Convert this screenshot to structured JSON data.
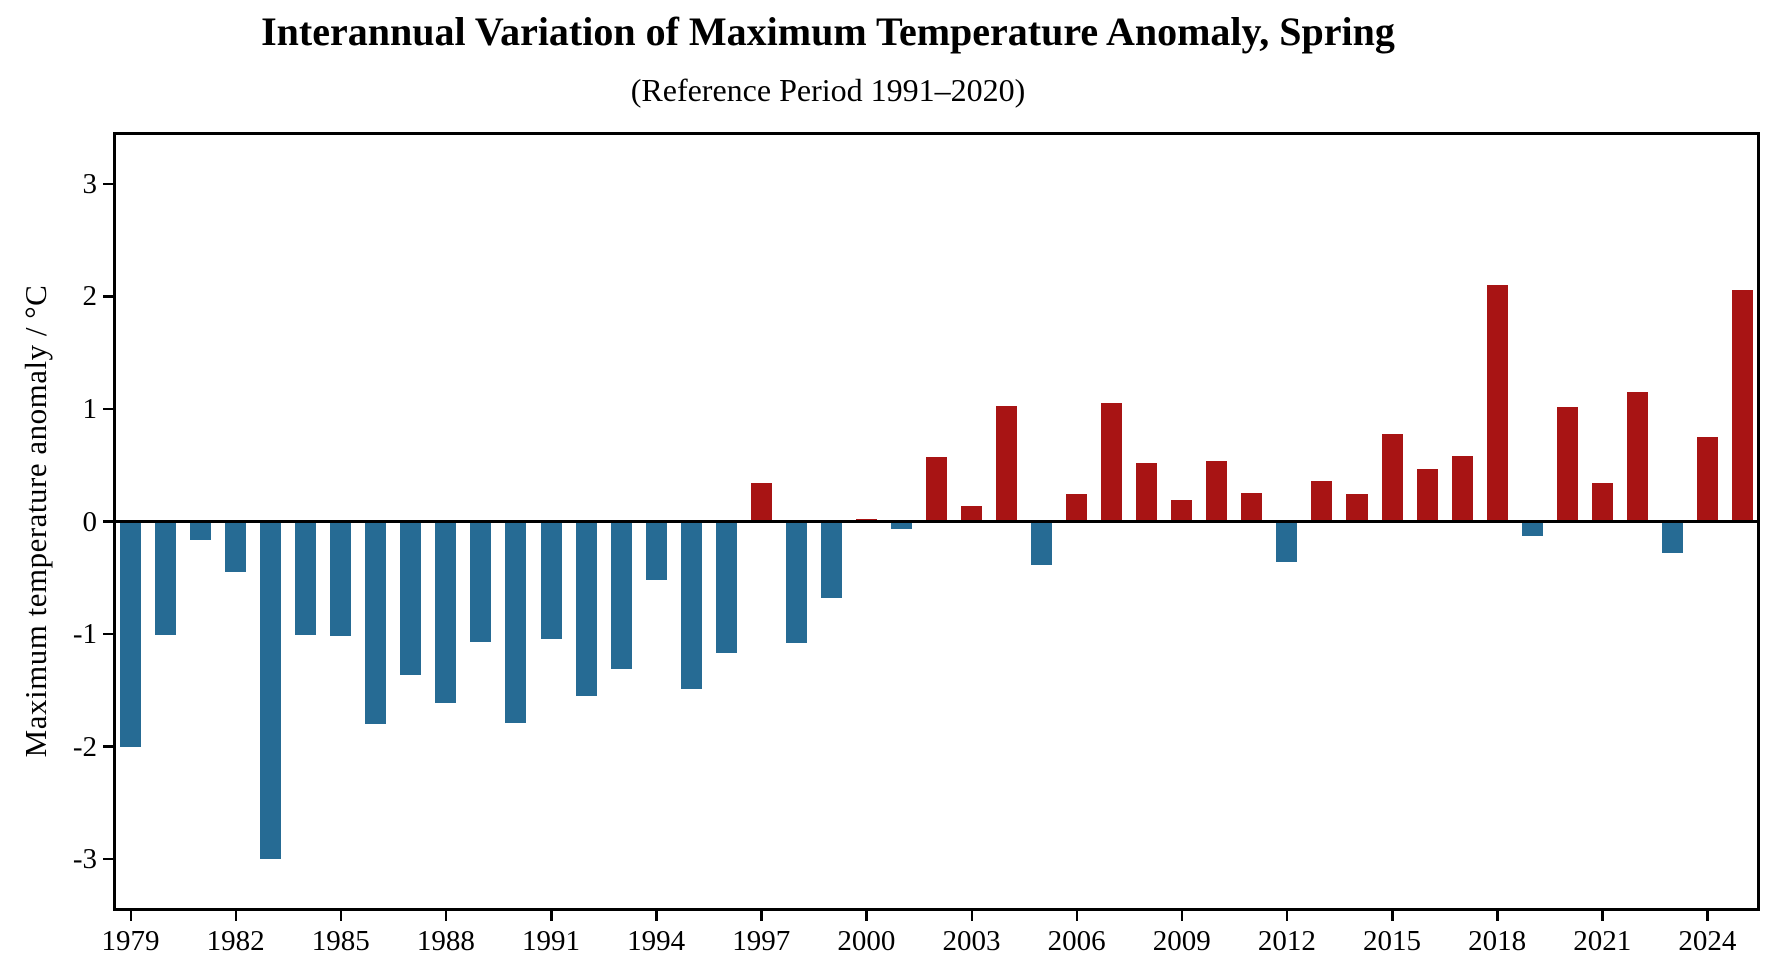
{
  "page": {
    "background": "#ffffff"
  },
  "chart_data": {
    "type": "bar",
    "title": "Interannual Variation of Maximum Temperature Anomaly, Spring",
    "subtitle": "(Reference Period 1991–2020)",
    "xlabel": "",
    "ylabel": "Maximum temperature anomaly / °C",
    "x": [
      1979,
      1980,
      1981,
      1982,
      1983,
      1984,
      1985,
      1986,
      1987,
      1988,
      1989,
      1990,
      1991,
      1992,
      1993,
      1994,
      1995,
      1996,
      1997,
      1998,
      1999,
      2000,
      2001,
      2002,
      2003,
      2004,
      2005,
      2006,
      2007,
      2008,
      2009,
      2010,
      2011,
      2012,
      2013,
      2014,
      2015,
      2016,
      2017,
      2018,
      2019,
      2020,
      2021,
      2022,
      2023,
      2024,
      2025
    ],
    "values": [
      -2.0,
      -1.01,
      -0.16,
      -0.45,
      -3.0,
      -1.01,
      -1.02,
      -1.8,
      -1.36,
      -1.61,
      -1.07,
      -1.79,
      -1.04,
      -1.55,
      -1.31,
      -0.52,
      -1.49,
      -1.17,
      0.34,
      -1.08,
      -0.68,
      0.02,
      -0.07,
      0.57,
      0.14,
      1.03,
      -0.39,
      0.24,
      1.05,
      0.52,
      0.19,
      0.54,
      0.25,
      -0.36,
      0.36,
      0.24,
      0.78,
      0.47,
      0.58,
      2.1,
      -0.13,
      1.02,
      0.34,
      1.15,
      -0.28,
      0.75,
      2.06
    ],
    "positive_color": "#a81414",
    "negative_color": "#266b94",
    "bar_width_years": 0.6,
    "xlim": [
      1978.5,
      2025.5
    ],
    "ylim": [
      -3.46,
      3.46
    ],
    "yticks": [
      3,
      2,
      1,
      0,
      -1,
      -2,
      -3
    ],
    "xticks": [
      1979,
      1982,
      1985,
      1988,
      1991,
      1994,
      1997,
      2000,
      2003,
      2006,
      2009,
      2012,
      2015,
      2018,
      2021,
      2024
    ],
    "grid": false,
    "zero_line": true,
    "legend": "none",
    "axis_color": "#000000"
  }
}
